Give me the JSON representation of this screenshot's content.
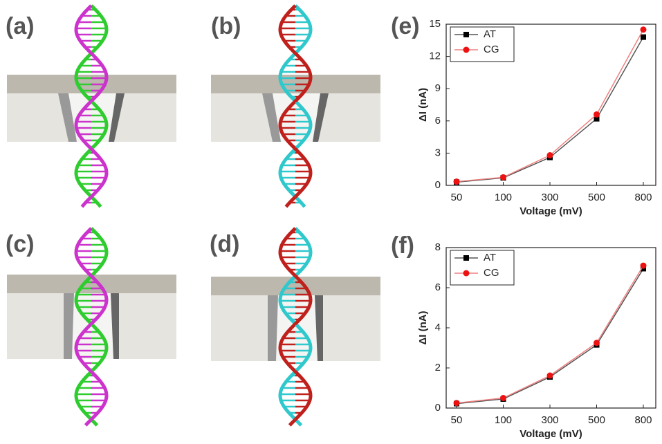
{
  "panels": [
    "(a)",
    "(b)",
    "(c)",
    "(d)"
  ],
  "chart_data": [
    {
      "type": "line",
      "title": "(e)",
      "x_label": "Voltage (mV)",
      "y_label": "ΔI (nA)",
      "categories": [
        "50",
        "100",
        "300",
        "500",
        "800"
      ],
      "series": [
        {
          "name": "AT",
          "color": "#000000",
          "line_color": "#555555",
          "marker": "square",
          "values": [
            0.3,
            0.7,
            2.6,
            6.2,
            13.8
          ]
        },
        {
          "name": "CG",
          "color": "#ee1111",
          "line_color": "#f08080",
          "marker": "circle",
          "values": [
            0.35,
            0.75,
            2.8,
            6.6,
            14.5
          ]
        }
      ],
      "ylim": [
        0,
        15
      ],
      "yticks": [
        0,
        3,
        6,
        9,
        12,
        15
      ],
      "legend": "upper-left"
    },
    {
      "type": "line",
      "title": "(f)",
      "x_label": "Voltage (mV)",
      "y_label": "ΔI (nA)",
      "categories": [
        "50",
        "100",
        "300",
        "500",
        "800"
      ],
      "series": [
        {
          "name": "AT",
          "color": "#000000",
          "line_color": "#555555",
          "marker": "square",
          "values": [
            0.22,
            0.45,
            1.55,
            3.15,
            6.95
          ]
        },
        {
          "name": "CG",
          "color": "#ee1111",
          "line_color": "#f08080",
          "marker": "circle",
          "values": [
            0.25,
            0.5,
            1.62,
            3.25,
            7.1
          ]
        }
      ],
      "ylim": [
        0,
        8
      ],
      "yticks": [
        0,
        2,
        4,
        6,
        8
      ],
      "legend": "upper-left"
    }
  ]
}
